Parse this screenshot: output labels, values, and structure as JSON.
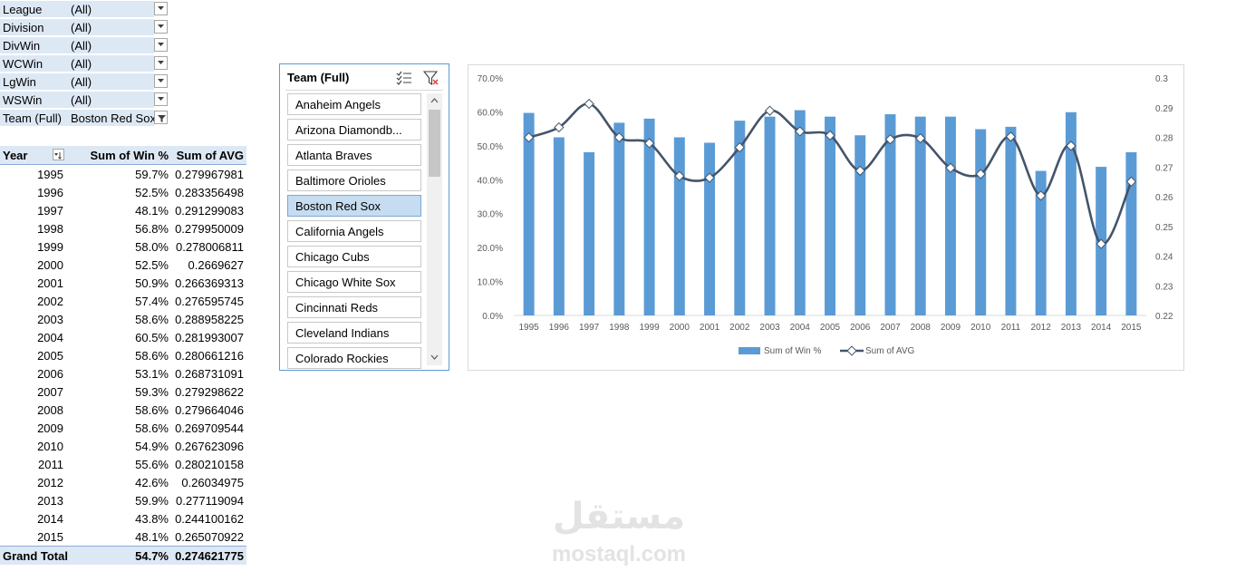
{
  "filters": [
    {
      "name": "League",
      "value": "(All)"
    },
    {
      "name": "Division",
      "value": "(All)"
    },
    {
      "name": "DivWin",
      "value": "(All)"
    },
    {
      "name": "WCWin",
      "value": "(All)"
    },
    {
      "name": "LgWin",
      "value": "(All)"
    },
    {
      "name": "WSWin",
      "value": "(All)"
    },
    {
      "name": "Team (Full)",
      "value": "Boston Red Sox"
    }
  ],
  "pivot": {
    "headers": [
      "Year",
      "Sum of Win %",
      "Sum of AVG"
    ],
    "rows": [
      [
        "1995",
        "59.7%",
        "0.279967981"
      ],
      [
        "1996",
        "52.5%",
        "0.283356498"
      ],
      [
        "1997",
        "48.1%",
        "0.291299083"
      ],
      [
        "1998",
        "56.8%",
        "0.279950009"
      ],
      [
        "1999",
        "58.0%",
        "0.278006811"
      ],
      [
        "2000",
        "52.5%",
        "0.2669627"
      ],
      [
        "2001",
        "50.9%",
        "0.266369313"
      ],
      [
        "2002",
        "57.4%",
        "0.276595745"
      ],
      [
        "2003",
        "58.6%",
        "0.288958225"
      ],
      [
        "2004",
        "60.5%",
        "0.281993007"
      ],
      [
        "2005",
        "58.6%",
        "0.280661216"
      ],
      [
        "2006",
        "53.1%",
        "0.268731091"
      ],
      [
        "2007",
        "59.3%",
        "0.279298622"
      ],
      [
        "2008",
        "58.6%",
        "0.279664046"
      ],
      [
        "2009",
        "58.6%",
        "0.269709544"
      ],
      [
        "2010",
        "54.9%",
        "0.267623096"
      ],
      [
        "2011",
        "55.6%",
        "0.280210158"
      ],
      [
        "2012",
        "42.6%",
        "0.26034975"
      ],
      [
        "2013",
        "59.9%",
        "0.277119094"
      ],
      [
        "2014",
        "43.8%",
        "0.244100162"
      ],
      [
        "2015",
        "48.1%",
        "0.265070922"
      ]
    ],
    "grand_total": [
      "Grand Total",
      "54.7%",
      "0.274621775"
    ]
  },
  "slicer": {
    "title": "Team (Full)",
    "items": [
      "Anaheim Angels",
      "Arizona Diamondb...",
      "Atlanta Braves",
      "Baltimore Orioles",
      "Boston Red Sox",
      "California Angels",
      "Chicago Cubs",
      "Chicago White Sox",
      "Cincinnati Reds",
      "Cleveland Indians",
      "Colorado Rockies"
    ],
    "selected": "Boston Red Sox"
  },
  "chart_data": {
    "type": "bar+line",
    "categories": [
      "1995",
      "1996",
      "1997",
      "1998",
      "1999",
      "2000",
      "2001",
      "2002",
      "2003",
      "2004",
      "2005",
      "2006",
      "2007",
      "2008",
      "2009",
      "2010",
      "2011",
      "2012",
      "2013",
      "2014",
      "2015"
    ],
    "series": [
      {
        "name": "Sum of Win %",
        "type": "bar",
        "axis": "primary",
        "color": "#5b9bd5",
        "values": [
          59.7,
          52.5,
          48.1,
          56.8,
          58.0,
          52.5,
          50.9,
          57.4,
          58.6,
          60.5,
          58.6,
          53.1,
          59.3,
          58.6,
          58.6,
          54.9,
          55.6,
          42.6,
          59.9,
          43.8,
          48.1
        ]
      },
      {
        "name": "Sum of AVG",
        "type": "line",
        "axis": "secondary",
        "color": "#44546a",
        "values": [
          0.279967981,
          0.283356498,
          0.291299083,
          0.279950009,
          0.278006811,
          0.2669627,
          0.266369313,
          0.276595745,
          0.288958225,
          0.281993007,
          0.280661216,
          0.268731091,
          0.279298622,
          0.279664046,
          0.269709544,
          0.267623096,
          0.280210158,
          0.26034975,
          0.277119094,
          0.244100162,
          0.265070922
        ]
      }
    ],
    "y_ticks": [
      "70.0%",
      "60.0%",
      "50.0%",
      "40.0%",
      "30.0%",
      "20.0%",
      "10.0%",
      "0.0%"
    ],
    "y2_ticks": [
      "0.3",
      "0.29",
      "0.28",
      "0.27",
      "0.26",
      "0.25",
      "0.24",
      "0.23",
      "0.22"
    ],
    "ylim": [
      0,
      70
    ],
    "y2lim": [
      0.22,
      0.3
    ],
    "legend": "bottom"
  },
  "watermark": {
    "arabic": "مستقل",
    "latin": "mostaql.com"
  }
}
